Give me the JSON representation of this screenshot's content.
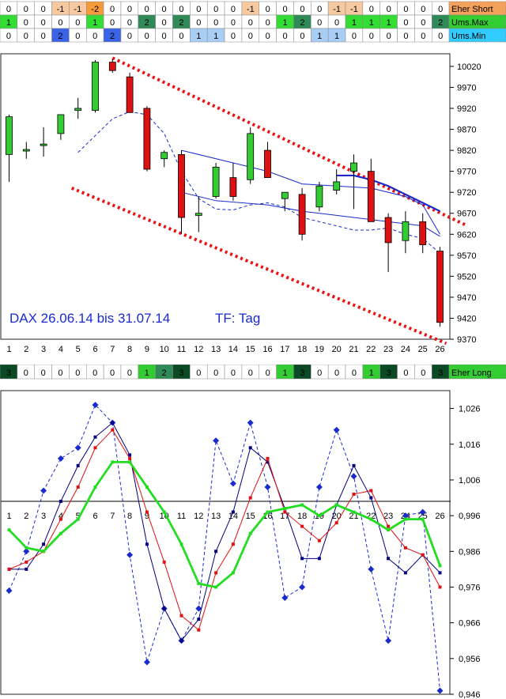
{
  "colors": {
    "candle_up": "#33cc33",
    "candle_down": "#dd1111",
    "channel": "#ee1111",
    "short_neg": "#f7c9a0",
    "short_neg2": "#f59a3a",
    "ums_max_light": "#33dd33",
    "ums_max_dark": "#2f8a57",
    "ums_min_light": "#a8cef5",
    "ums_min_dark": "#3b63e6",
    "long_light": "#33cc33",
    "long_mid": "#2f8a57",
    "long_dark": "#0c4a26",
    "label_short_bg": "#f4a15c",
    "label_max_bg": "#33cc33",
    "label_min_bg": "#33ccff",
    "dax_text": "#1a2bcc"
  },
  "signals": {
    "eher_short": {
      "label": "Eher Short",
      "values": [
        "0",
        "0",
        "0",
        "-1",
        "-1",
        "-2",
        "0",
        "0",
        "0",
        "0",
        "0",
        "0",
        "0",
        "0",
        "-1",
        "0",
        "0",
        "0",
        "0",
        "-1",
        "-1",
        "0",
        "0",
        "0",
        "0",
        "0"
      ],
      "levels": [
        0,
        0,
        0,
        1,
        1,
        2,
        0,
        0,
        0,
        0,
        0,
        0,
        0,
        0,
        1,
        0,
        0,
        0,
        0,
        1,
        1,
        0,
        0,
        0,
        0,
        0
      ]
    },
    "ums_max": {
      "label": "Ums.Max",
      "values": [
        "1",
        "0",
        "0",
        "0",
        "0",
        "1",
        "0",
        "0",
        "2",
        "0",
        "2",
        "0",
        "0",
        "0",
        "0",
        "0",
        "1",
        "2",
        "0",
        "0",
        "1",
        "1",
        "1",
        "0",
        "0",
        "2"
      ],
      "levels": [
        1,
        0,
        0,
        0,
        0,
        1,
        0,
        0,
        2,
        0,
        2,
        0,
        0,
        0,
        0,
        0,
        1,
        2,
        0,
        0,
        1,
        1,
        1,
        0,
        0,
        2
      ]
    },
    "ums_min": {
      "label": "Ums.Min",
      "values": [
        "0",
        "0",
        "0",
        "2",
        "0",
        "0",
        "2",
        "0",
        "0",
        "0",
        "0",
        "1",
        "1",
        "0",
        "0",
        "0",
        "0",
        "0",
        "1",
        "1",
        "0",
        "0",
        "0",
        "0",
        "0",
        "0"
      ],
      "levels": [
        0,
        0,
        0,
        2,
        0,
        0,
        2,
        0,
        0,
        0,
        0,
        1,
        1,
        0,
        0,
        0,
        0,
        0,
        1,
        1,
        0,
        0,
        0,
        0,
        0,
        0
      ]
    },
    "eher_long": {
      "label": "Eher Long",
      "values": [
        "3",
        "0",
        "0",
        "0",
        "0",
        "0",
        "0",
        "0",
        "1",
        "2",
        "3",
        "0",
        "0",
        "0",
        "0",
        "0",
        "1",
        "3",
        "0",
        "0",
        "0",
        "1",
        "3",
        "0",
        "0",
        "3"
      ],
      "levels": [
        3,
        0,
        0,
        0,
        0,
        0,
        0,
        0,
        1,
        2,
        3,
        0,
        0,
        0,
        0,
        0,
        1,
        3,
        0,
        0,
        0,
        1,
        3,
        0,
        0,
        3
      ]
    }
  },
  "chart_data": [
    {
      "type": "candlestick",
      "annotation_left": "DAX 26.06.14 bis 31.07.14",
      "annotation_right": "TF: Tag",
      "categories": [
        "1",
        "2",
        "3",
        "4",
        "5",
        "6",
        "7",
        "8",
        "9",
        "10",
        "11",
        "12",
        "13",
        "14",
        "15",
        "16",
        "17",
        "18",
        "19",
        "20",
        "21",
        "22",
        "23",
        "24",
        "25",
        "26"
      ],
      "ylim": [
        9370,
        10050
      ],
      "yticks": [
        "10020",
        "9970",
        "9920",
        "9870",
        "9820",
        "9770",
        "9720",
        "9670",
        "9620",
        "9570",
        "9520",
        "9470",
        "9420",
        "9370"
      ],
      "candles": [
        {
          "o": 9810,
          "h": 9905,
          "l": 9745,
          "c": 9900
        },
        {
          "o": 9820,
          "h": 9840,
          "l": 9800,
          "c": 9822
        },
        {
          "o": 9835,
          "h": 9875,
          "l": 9805,
          "c": 9835
        },
        {
          "o": 9860,
          "h": 9905,
          "l": 9845,
          "c": 9905
        },
        {
          "o": 9915,
          "h": 9945,
          "l": 9895,
          "c": 9920
        },
        {
          "o": 9915,
          "h": 10035,
          "l": 9910,
          "c": 10030
        },
        {
          "o": 10030,
          "h": 10037,
          "l": 10005,
          "c": 10010
        },
        {
          "o": 9995,
          "h": 10005,
          "l": 9910,
          "c": 9910
        },
        {
          "o": 9920,
          "h": 9925,
          "l": 9770,
          "c": 9775
        },
        {
          "o": 9800,
          "h": 9820,
          "l": 9780,
          "c": 9815
        },
        {
          "o": 9810,
          "h": 9820,
          "l": 9620,
          "c": 9660
        },
        {
          "o": 9665,
          "h": 9710,
          "l": 9625,
          "c": 9670
        },
        {
          "o": 9710,
          "h": 9790,
          "l": 9705,
          "c": 9780
        },
        {
          "o": 9755,
          "h": 9790,
          "l": 9700,
          "c": 9710
        },
        {
          "o": 9750,
          "h": 9875,
          "l": 9740,
          "c": 9860
        },
        {
          "o": 9820,
          "h": 9840,
          "l": 9760,
          "c": 9755
        },
        {
          "o": 9705,
          "h": 9720,
          "l": 9675,
          "c": 9720
        },
        {
          "o": 9715,
          "h": 9730,
          "l": 9605,
          "c": 9620
        },
        {
          "o": 9685,
          "h": 9745,
          "l": 9675,
          "c": 9735
        },
        {
          "o": 9725,
          "h": 9775,
          "l": 9715,
          "c": 9745
        },
        {
          "o": 9770,
          "h": 9810,
          "l": 9680,
          "c": 9790
        },
        {
          "o": 9770,
          "h": 9800,
          "l": 9650,
          "c": 9650
        },
        {
          "o": 9660,
          "h": 9670,
          "l": 9530,
          "c": 9600
        },
        {
          "o": 9605,
          "h": 9675,
          "l": 9575,
          "c": 9650
        },
        {
          "o": 9650,
          "h": 9670,
          "l": 9575,
          "c": 9595
        },
        {
          "o": 9580,
          "h": 9590,
          "l": 9400,
          "c": 9410
        }
      ],
      "channel_upper": [
        {
          "x": 7,
          "y": 10040
        },
        {
          "x": 26,
          "y": 9655
        }
      ],
      "channel_lower": [
        {
          "x": 5,
          "y": 9730
        },
        {
          "x": 26,
          "y": 9360
        }
      ],
      "series": [
        {
          "style": "dashed-thin",
          "points": [
            [
              5,
              9815
            ],
            [
              6,
              9855
            ],
            [
              7,
              9895
            ],
            [
              8,
              9912
            ],
            [
              9,
              9905
            ],
            [
              10,
              9860
            ],
            [
              11,
              9770
            ],
            [
              12,
              9705
            ],
            [
              13,
              9680
            ],
            [
              14,
              9678
            ],
            [
              15,
              9690
            ],
            [
              16,
              9695
            ],
            [
              17,
              9685
            ],
            [
              18,
              9660
            ],
            [
              19,
              9650
            ],
            [
              20,
              9640
            ],
            [
              21,
              9630
            ],
            [
              22,
              9630
            ],
            [
              23,
              9635
            ],
            [
              24,
              9620
            ],
            [
              25,
              9610
            ],
            [
              26,
              9575
            ]
          ]
        },
        {
          "style": "solid-thin",
          "points": [
            [
              11,
              9820
            ],
            [
              14,
              9790
            ],
            [
              16,
              9770
            ],
            [
              18,
              9740
            ],
            [
              20,
              9735
            ],
            [
              22,
              9730
            ],
            [
              24,
              9710
            ],
            [
              25,
              9690
            ],
            [
              26,
              9620
            ]
          ]
        },
        {
          "style": "solid-thin",
          "points": [
            [
              11,
              9720
            ],
            [
              13,
              9700
            ],
            [
              16,
              9690
            ],
            [
              18,
              9675
            ],
            [
              20,
              9665
            ],
            [
              23,
              9650
            ],
            [
              25,
              9640
            ],
            [
              26,
              9615
            ]
          ]
        },
        {
          "style": "solid-thick",
          "points": [
            [
              20,
              9760
            ],
            [
              21,
              9760
            ],
            [
              22,
              9750
            ],
            [
              23,
              9735
            ],
            [
              24,
              9715
            ],
            [
              25,
              9695
            ],
            [
              26,
              9675
            ]
          ]
        }
      ]
    },
    {
      "type": "line",
      "categories": [
        "1",
        "2",
        "3",
        "4",
        "5",
        "6",
        "7",
        "8",
        "9",
        "10",
        "11",
        "12",
        "13",
        "14",
        "15",
        "16",
        "17",
        "18",
        "19",
        "20",
        "21",
        "22",
        "23",
        "24",
        "25",
        "26"
      ],
      "ylim": [
        0.946,
        1.031
      ],
      "yticks": [
        "1,026",
        "1,016",
        "1,006",
        "0,996",
        "0,986",
        "0,976",
        "0,966",
        "0,956",
        "0,946"
      ],
      "reference_line": 1.0,
      "series": [
        {
          "color": "#1a2bcc",
          "style": "dashed",
          "marker": "diamond",
          "values": [
            0.975,
            0.986,
            1.003,
            1.012,
            1.015,
            1.027,
            1.022,
            0.985,
            0.955,
            0.97,
            0.961,
            0.97,
            1.017,
            1.005,
            1.022,
            1.004,
            0.973,
            0.976,
            1.004,
            1.02,
            1.007,
            0.981,
            0.961,
            0.996,
            0.997,
            0.947
          ]
        },
        {
          "color": "#000080",
          "style": "solid",
          "marker": "square",
          "values": [
            0.981,
            0.981,
            0.988,
            1.0,
            1.01,
            1.018,
            1.022,
            1.013,
            0.988,
            0.97,
            0.961,
            0.967,
            0.986,
            0.997,
            1.015,
            1.011,
            0.998,
            0.984,
            0.984,
            0.999,
            1.01,
            1.001,
            0.984,
            0.98,
            0.985,
            0.98
          ]
        },
        {
          "color": "#e01010",
          "style": "solid",
          "marker": "square",
          "values": [
            0.981,
            0.983,
            0.986,
            0.995,
            1.004,
            1.015,
            1.02,
            1.012,
            0.997,
            0.983,
            0.968,
            0.964,
            0.98,
            0.988,
            1.001,
            1.012,
            0.997,
            0.993,
            0.989,
            0.994,
            1.002,
            1.003,
            0.993,
            0.987,
            0.985,
            0.976
          ]
        },
        {
          "color": "#22dd22",
          "style": "solid-thick",
          "marker": "square",
          "values": [
            0.992,
            0.987,
            0.986,
            0.991,
            0.995,
            1.004,
            1.011,
            1.011,
            1.004,
            0.997,
            0.988,
            0.977,
            0.976,
            0.98,
            0.991,
            0.997,
            0.998,
            0.999,
            0.996,
            0.999,
            0.997,
            0.995,
            0.992,
            0.995,
            0.995,
            0.982
          ]
        }
      ]
    }
  ]
}
